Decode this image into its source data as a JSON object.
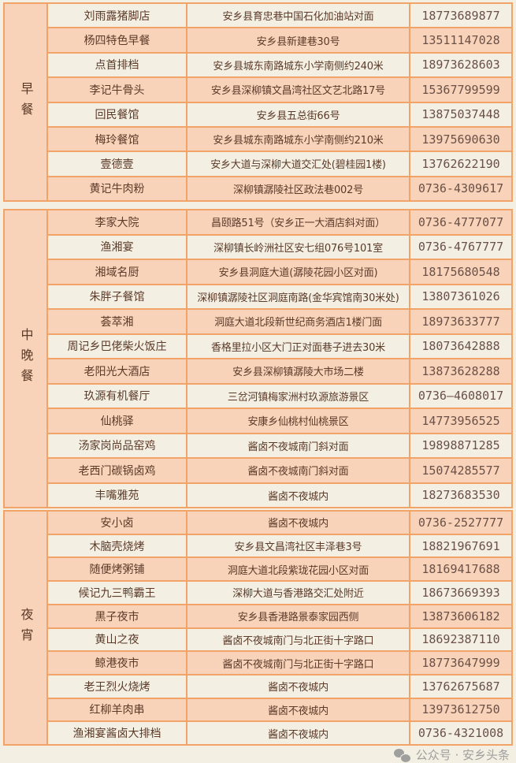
{
  "sections": [
    {
      "label": "早餐",
      "first_row_style": "cream",
      "rows": [
        {
          "name": "刘雨露猪脚店",
          "address": "安乡县育忠巷中国石化加油站对面",
          "phone": "18773689877"
        },
        {
          "name": "杨四特色早餐",
          "address": "安乡县新建巷30号",
          "phone": "13511147028"
        },
        {
          "name": "点首排档",
          "address": "安乡县城东南路城东小学南侧约240米",
          "phone": "18973628603"
        },
        {
          "name": "李记牛骨头",
          "address": "安乡县深柳镇文昌湾社区文艺北路17号",
          "phone": "15367799599"
        },
        {
          "name": "回民餐馆",
          "address": "安乡县五总街66号",
          "phone": "13875037448"
        },
        {
          "name": "梅玲餐馆",
          "address": "安乡县城东南路城东小学南侧约210米",
          "phone": "13975690630"
        },
        {
          "name": "壹德壹",
          "address": "安乡大道与深柳大道交汇处(碧桂园1楼)",
          "phone": "13762622190"
        },
        {
          "name": "黄记牛肉粉",
          "address": "深柳镇潺陵社区政法巷002号",
          "phone": "0736-4309617"
        }
      ]
    },
    {
      "label": "中晚餐",
      "first_row_style": "peach",
      "rows": [
        {
          "name": "李家大院",
          "address": "昌颐路51号（安乡正一大酒店斜对面）",
          "phone": "0736-4777077"
        },
        {
          "name": "渔湘宴",
          "address": "深柳镇长岭洲社区安七组076号101室",
          "phone": "0736-4767777"
        },
        {
          "name": "湘域名厨",
          "address": "安乡县洞庭大道(潺陵花园小区对面)",
          "phone": "18175680548"
        },
        {
          "name": "朱胖子餐馆",
          "address": "深柳镇潺陵社区洞庭南路(金华宾馆南30米处)",
          "phone": "13807361026"
        },
        {
          "name": "荟萃湘",
          "address": "洞庭大道北段新世纪商务酒店1楼门面",
          "phone": "18973633777"
        },
        {
          "name": "周记乡巴佬柴火饭庄",
          "address": "香格里拉小区大门正对面巷子进去30米",
          "phone": "18073642888"
        },
        {
          "name": "老阳光大酒店",
          "address": "安乡县深柳镇潺陵大市场二楼",
          "phone": "13873628288"
        },
        {
          "name": "玖源有机餐厅",
          "address": "三岔河镇梅家洲村玖源旅游景区",
          "phone": "0736—4608017"
        },
        {
          "name": "仙桃驿",
          "address": "安康乡仙桃村仙桃景区",
          "phone": "14773956525"
        },
        {
          "name": "汤家岗尚品窑鸡",
          "address": "酱卤不夜城南门斜对面",
          "phone": "19898871285"
        },
        {
          "name": "老西门碳锅卤鸡",
          "address": "酱卤不夜城南门斜对面",
          "phone": "15074285577"
        },
        {
          "name": "丰嘴雅苑",
          "address": "酱卤不夜城内",
          "phone": "18273683530"
        }
      ]
    },
    {
      "label": "夜宵",
      "first_row_style": "peach",
      "rows": [
        {
          "name": "安小卤",
          "address": "酱卤不夜城内",
          "phone": "0736-2527777"
        },
        {
          "name": "木脑壳烧烤",
          "address": "安乡县文昌湾社区丰泽巷3号",
          "phone": "18821967691"
        },
        {
          "name": "随便烤粥铺",
          "address": "洞庭大道北段紫珑花园小区对面",
          "phone": "18169417688"
        },
        {
          "name": "候记九三鸭霸王",
          "address": "深柳大道与香港路交汇处附近",
          "phone": "18673669393"
        },
        {
          "name": "黑子夜市",
          "address": "安乡县香港路景泰家园西侧",
          "phone": "13873606182"
        },
        {
          "name": "黄山之夜",
          "address": "酱卤不夜城南门与北正街十字路口",
          "phone": "18692387110"
        },
        {
          "name": "鲸港夜市",
          "address": "酱卤不夜城南门与北正街十字路口",
          "phone": "18773647999"
        },
        {
          "name": "老王烈火烧烤",
          "address": "酱卤不夜城内",
          "phone": "13762675687"
        },
        {
          "name": "红柳羊肉串",
          "address": "酱卤不夜城内",
          "phone": "13973612750"
        },
        {
          "name": "渔湘宴酱卤大排档",
          "address": "酱卤不夜城内",
          "phone": "0736-4321008"
        }
      ]
    }
  ],
  "watermark": {
    "text": "公众号 · 安乡头条",
    "icon": "wechat-icon"
  },
  "colors": {
    "cream": "#f4efe3",
    "peach": "#f8d3ba",
    "border": "#f2a468",
    "text": "#5b3a28"
  }
}
